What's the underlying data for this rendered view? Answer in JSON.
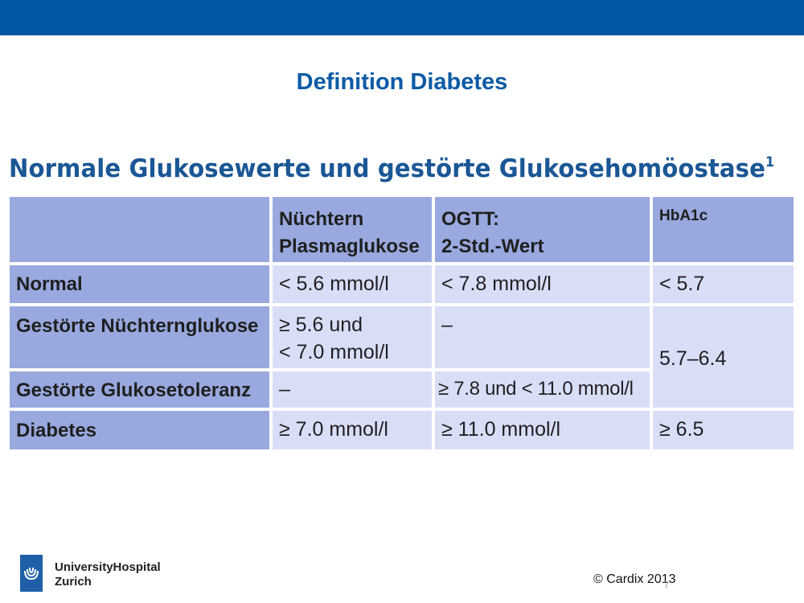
{
  "slide": {
    "title": "Definition Diabetes",
    "table_heading": "Normale Glukosewerte und gestörte Glukosehomöostase",
    "table_heading_sup": "1"
  },
  "table": {
    "headers": {
      "col1_line1": "Nüchtern",
      "col1_line2": "Plasmaglukose",
      "col2_line1": "OGTT:",
      "col2_line2": "2-Std.-Wert",
      "col3": "HbA1c"
    },
    "rows": [
      {
        "label": "Normal",
        "fasting": "< 5.6 mmol/l",
        "ogtt": "< 7.8 mmol/l",
        "hba1c": "< 5.7"
      },
      {
        "label": "Gestörte Nüchternglukose",
        "fasting_line1": "≥ 5.6 und",
        "fasting_line2": "< 7.0 mmol/l",
        "ogtt": "–"
      },
      {
        "label": "Gestörte Glukosetoleranz",
        "fasting": "–",
        "ogtt": "≥ 7.8 und < 11.0 mmol/l"
      },
      {
        "label": "Diabetes",
        "fasting": "≥ 7.0 mmol/l",
        "ogtt": "≥ 11.0 mmol/l",
        "hba1c": "≥ 6.5"
      }
    ],
    "hba1c_merged": "5.7–6.4"
  },
  "footer": {
    "brand_line1": "UniversityHospital",
    "brand_line2": "Zurich",
    "copyright": "© Cardix 2013",
    "page_mark": "7"
  },
  "colors": {
    "top_bar": "#0157a4",
    "title": "#0b5aa6",
    "header_cell": "#99a9df",
    "body_cell": "#d9def7"
  }
}
